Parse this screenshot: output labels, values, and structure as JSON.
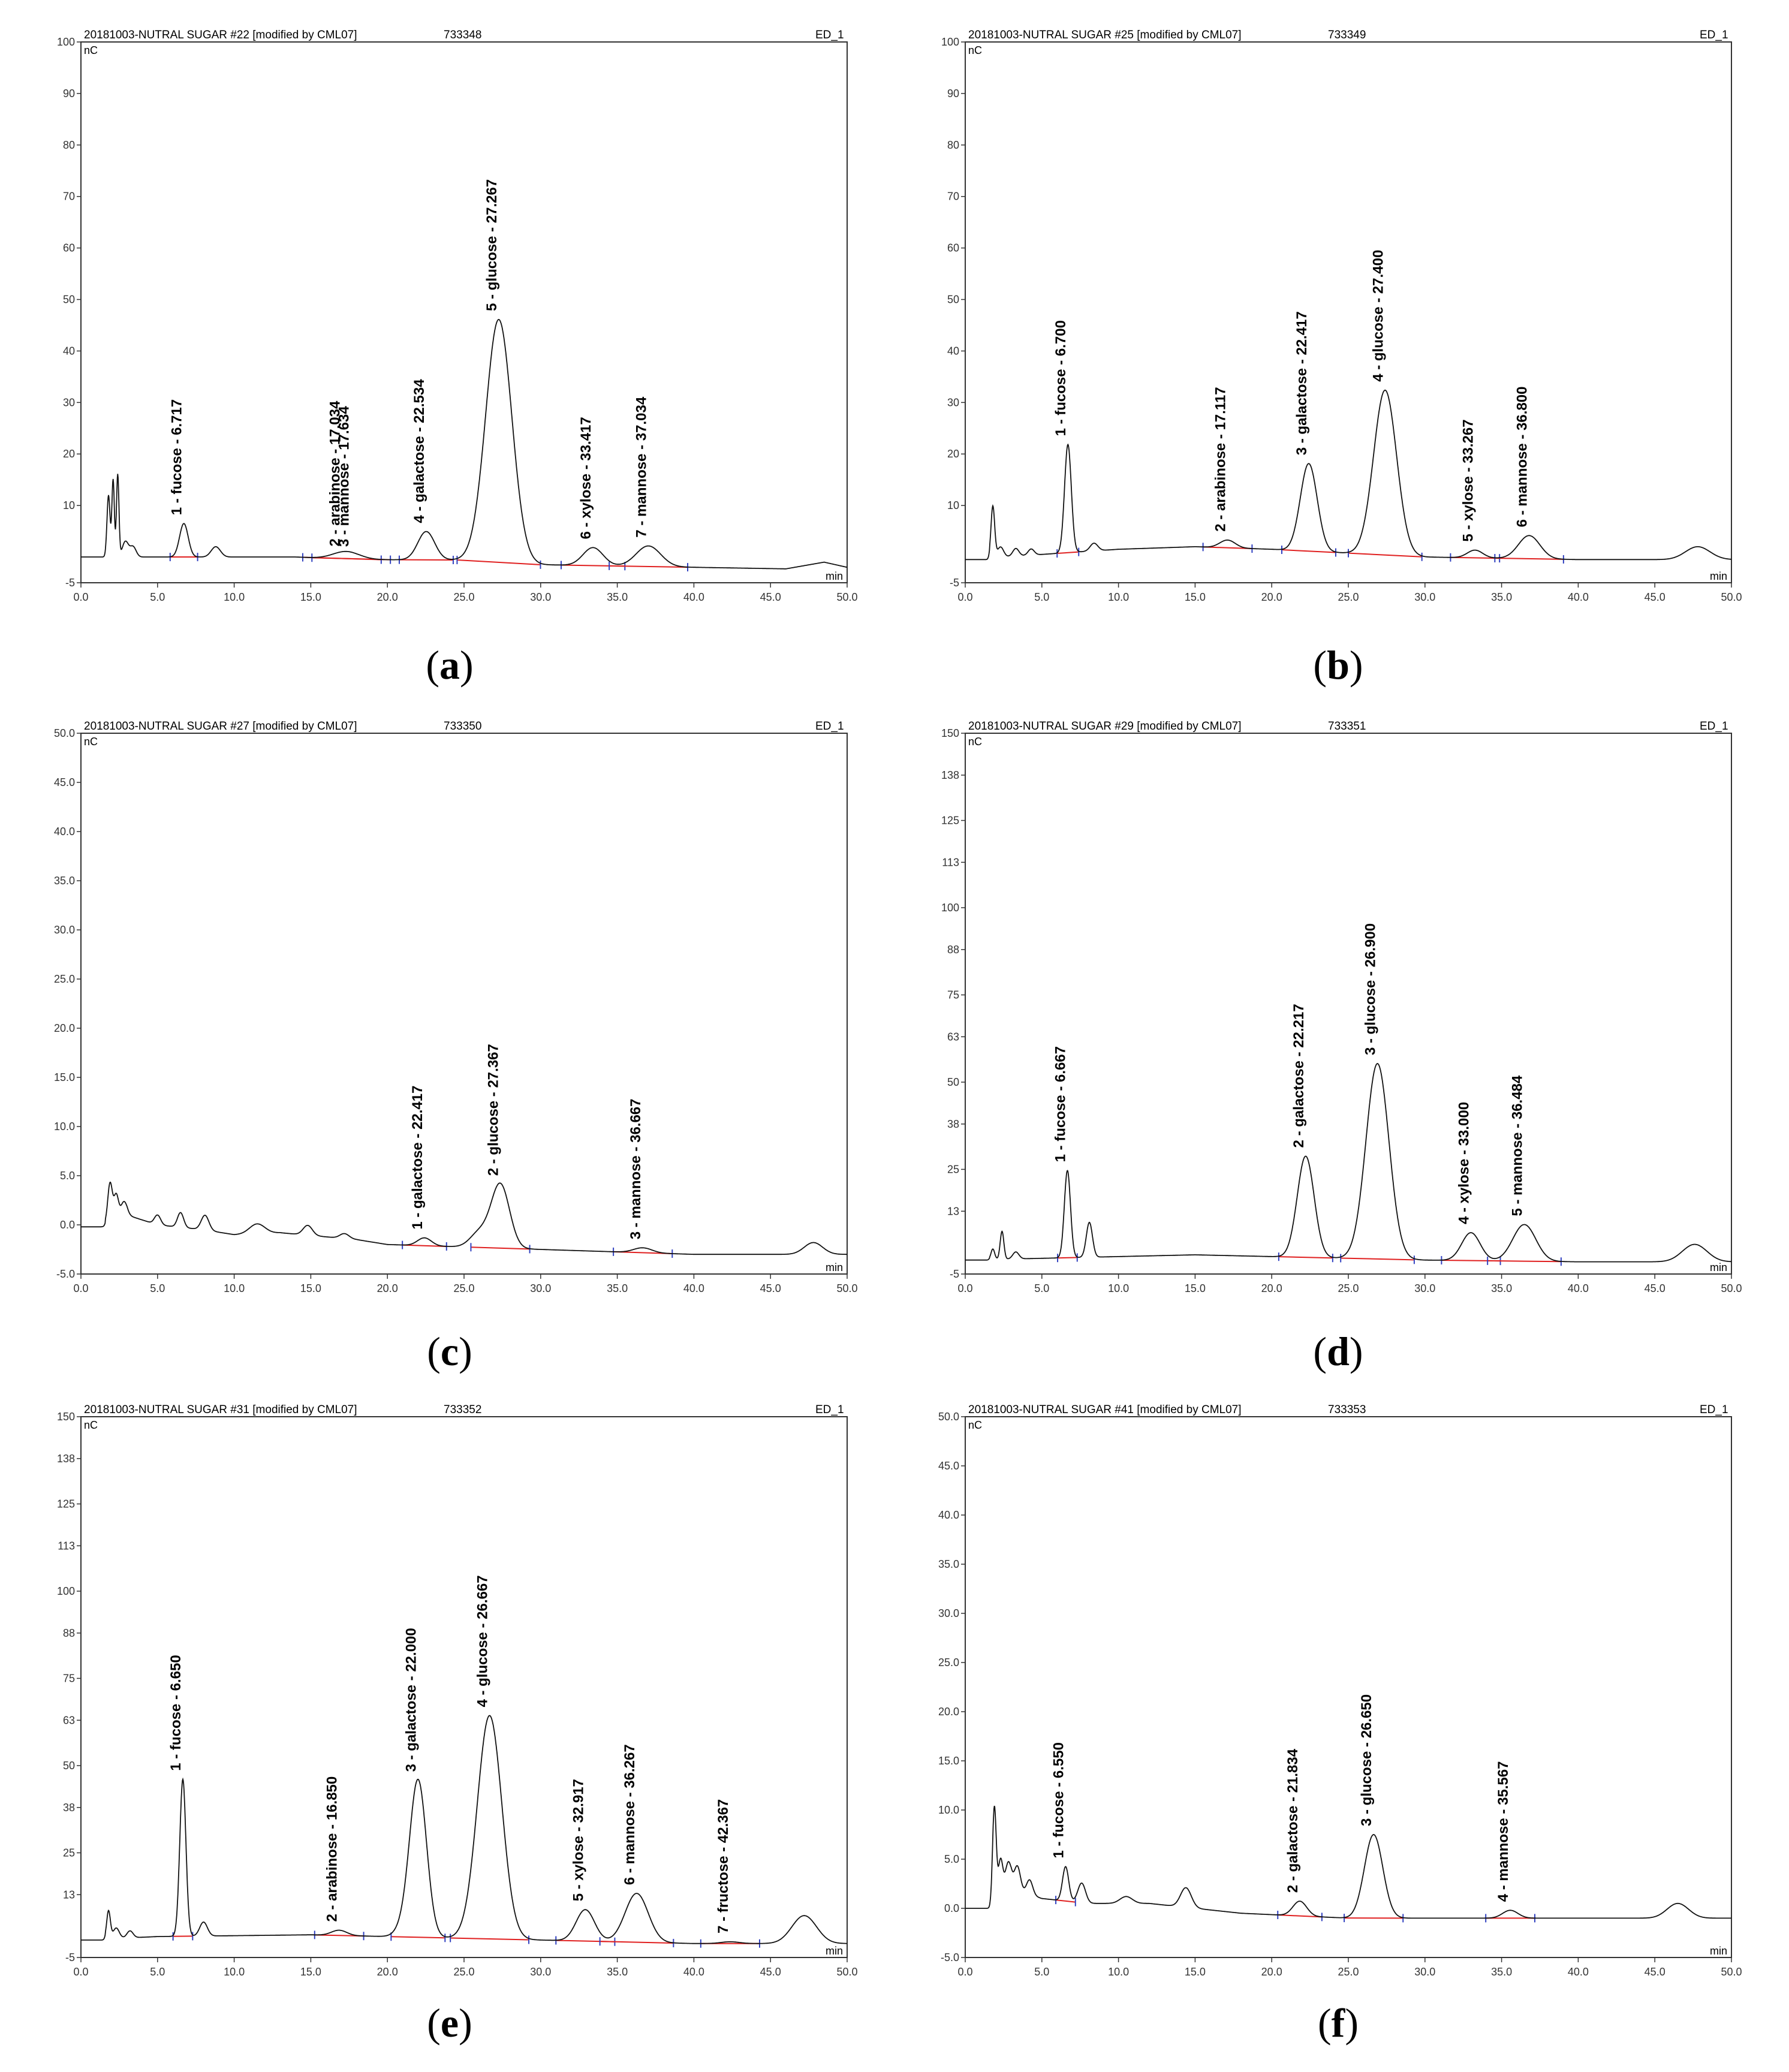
{
  "x_unit": "min",
  "y_unit": "nC",
  "chart_data": [
    {
      "type": "line",
      "caption_letter": "a",
      "header_title": "20181003-NUTRAL SUGAR #22 [modified by CML07]",
      "header_id": "733348",
      "header_detector": "ED_1",
      "xlim": [
        0,
        50
      ],
      "ylim": [
        -5,
        100
      ],
      "xticks": [
        "0.0",
        "5.0",
        "10.0",
        "15.0",
        "20.0",
        "25.0",
        "30.0",
        "35.0",
        "40.0",
        "45.0",
        "50.0"
      ],
      "yticks": [
        "-5",
        "10",
        "20",
        "30",
        "40",
        "50",
        "60",
        "70",
        "80",
        "90",
        "100"
      ],
      "ytick_values": [
        -5,
        10,
        20,
        30,
        40,
        50,
        60,
        70,
        80,
        90,
        100
      ],
      "baseline": [
        [
          0,
          0
        ],
        [
          14,
          0
        ],
        [
          18,
          -0.5
        ],
        [
          26,
          -0.6
        ],
        [
          30,
          -1.5
        ],
        [
          40,
          -2.0
        ],
        [
          46,
          -2.3
        ],
        [
          48.5,
          -1
        ],
        [
          50,
          -2
        ]
      ],
      "minor_peaks": [
        [
          1.8,
          12,
          0.1
        ],
        [
          2.1,
          15,
          0.08
        ],
        [
          2.4,
          16,
          0.08
        ],
        [
          2.9,
          3,
          0.2
        ],
        [
          3.4,
          2,
          0.2
        ],
        [
          8.8,
          2,
          0.3
        ]
      ],
      "peaks": [
        {
          "label": "1 - fucose - 6.717",
          "rt": 6.717,
          "height": 6.5,
          "width": 0.28
        },
        {
          "label": "2 - arabinose - 17.034",
          "rt": 17.034,
          "height": 0.8,
          "width": 0.8
        },
        {
          "label": "3 - mannose - 17.634",
          "rt": 17.634,
          "height": 0.8,
          "width": 0.8
        },
        {
          "label": "4 - galactose - 22.534",
          "rt": 22.534,
          "height": 5.5,
          "width": 0.55
        },
        {
          "label": "5 - glucose - 27.267",
          "rt": 27.267,
          "height": 47,
          "width": 0.85
        },
        {
          "label": "6 - xylose - 33.417",
          "rt": 33.417,
          "height": 3.5,
          "width": 0.65
        },
        {
          "label": "7 - mannose - 37.034",
          "rt": 37.034,
          "height": 4,
          "width": 0.8
        }
      ]
    },
    {
      "type": "line",
      "caption_letter": "b",
      "header_title": "20181003-NUTRAL SUGAR #25 [modified by CML07]",
      "header_id": "733349",
      "header_detector": "ED_1",
      "xlim": [
        0,
        50
      ],
      "ylim": [
        -5,
        100
      ],
      "xticks": [
        "0.0",
        "5.0",
        "10.0",
        "15.0",
        "20.0",
        "25.0",
        "30.0",
        "35.0",
        "40.0",
        "45.0",
        "50.0"
      ],
      "yticks": [
        "-5",
        "10",
        "20",
        "30",
        "40",
        "50",
        "60",
        "70",
        "80",
        "90",
        "100"
      ],
      "ytick_values": [
        -5,
        10,
        20,
        30,
        40,
        50,
        60,
        70,
        80,
        90,
        100
      ],
      "baseline": [
        [
          0,
          -0.5
        ],
        [
          5,
          0.5
        ],
        [
          10,
          1.5
        ],
        [
          15,
          2
        ],
        [
          20,
          1.5
        ],
        [
          30,
          0
        ],
        [
          40,
          -0.5
        ],
        [
          45,
          -0.5
        ],
        [
          50,
          -0.5
        ]
      ],
      "minor_peaks": [
        [
          1.8,
          10,
          0.12
        ],
        [
          2.3,
          2,
          0.2
        ],
        [
          3.3,
          1.5,
          0.2
        ],
        [
          4.3,
          1.2,
          0.2
        ],
        [
          8.4,
          1.5,
          0.25
        ],
        [
          47.8,
          2.5,
          0.8
        ]
      ],
      "peaks": [
        {
          "label": "1 - fucose - 6.700",
          "rt": 6.7,
          "height": 21,
          "width": 0.22
        },
        {
          "label": "2 - arabinose - 17.117",
          "rt": 17.117,
          "height": 1.5,
          "width": 0.5
        },
        {
          "label": "3 - galactose - 22.417",
          "rt": 22.417,
          "height": 17,
          "width": 0.55
        },
        {
          "label": "4 - glucose - 27.400",
          "rt": 27.4,
          "height": 32,
          "width": 0.75
        },
        {
          "label": "5 - xylose - 33.267",
          "rt": 33.267,
          "height": 1.5,
          "width": 0.5
        },
        {
          "label": "6 - mannose - 36.800",
          "rt": 36.8,
          "height": 4.5,
          "width": 0.7
        }
      ]
    },
    {
      "type": "line",
      "caption_letter": "c",
      "header_title": "20181003-NUTRAL SUGAR #27 [modified by CML07]",
      "header_id": "733350",
      "header_detector": "ED_1",
      "xlim": [
        0,
        50
      ],
      "ylim": [
        -5,
        50
      ],
      "xticks": [
        "0.0",
        "5.0",
        "10.0",
        "15.0",
        "20.0",
        "25.0",
        "30.0",
        "35.0",
        "40.0",
        "45.0",
        "50.0"
      ],
      "yticks": [
        "-5.0",
        "0.0",
        "5.0",
        "10.0",
        "15.0",
        "20.0",
        "25.0",
        "30.0",
        "35.0",
        "40.0",
        "45.0",
        "50.0"
      ],
      "ytick_values": [
        -5,
        0,
        5,
        10,
        15,
        20,
        25,
        30,
        35,
        40,
        45,
        50
      ],
      "baseline": [
        [
          0,
          -0.2
        ],
        [
          1.5,
          0
        ],
        [
          3,
          1
        ],
        [
          5,
          0
        ],
        [
          8,
          -0.5
        ],
        [
          10,
          -1
        ],
        [
          13,
          -0.8
        ],
        [
          18,
          -1.5
        ],
        [
          20,
          -2
        ],
        [
          30,
          -2.5
        ],
        [
          40,
          -3
        ],
        [
          46,
          -3
        ],
        [
          50,
          -3
        ]
      ],
      "minor_peaks": [
        [
          1.9,
          4,
          0.15
        ],
        [
          2.3,
          2.5,
          0.15
        ],
        [
          2.8,
          1.5,
          0.2
        ],
        [
          5.0,
          1,
          0.2
        ],
        [
          6.5,
          1.5,
          0.2
        ],
        [
          8.1,
          1.5,
          0.25
        ],
        [
          11.5,
          1,
          0.5
        ],
        [
          14.8,
          1,
          0.3
        ],
        [
          17.2,
          0.5,
          0.3
        ],
        [
          26.0,
          1.5,
          0.6
        ],
        [
          47.8,
          1.2,
          0.6
        ]
      ],
      "peaks": [
        {
          "label": "1 - galactose - 22.417",
          "rt": 22.417,
          "height": 0.8,
          "width": 0.45
        },
        {
          "label": "2 - glucose - 27.367",
          "rt": 27.367,
          "height": 6.5,
          "width": 0.6
        },
        {
          "label": "3 - mannose - 36.667",
          "rt": 36.667,
          "height": 0.5,
          "width": 0.6
        }
      ]
    },
    {
      "type": "line",
      "caption_letter": "d",
      "header_title": "20181003-NUTRAL SUGAR #29 [modified by CML07]",
      "header_id": "733351",
      "header_detector": "ED_1",
      "xlim": [
        0,
        50
      ],
      "ylim": [
        -5,
        150
      ],
      "xticks": [
        "0.0",
        "5.0",
        "10.0",
        "15.0",
        "20.0",
        "25.0",
        "30.0",
        "35.0",
        "40.0",
        "45.0",
        "50.0"
      ],
      "yticks": [
        "-5",
        "13",
        "25",
        "38",
        "50",
        "63",
        "75",
        "88",
        "100",
        "113",
        "125",
        "138",
        "150"
      ],
      "ytick_values": [
        -5,
        13,
        25,
        38,
        50,
        63,
        75,
        88,
        100,
        113,
        125,
        138,
        150
      ],
      "baseline": [
        [
          0,
          -1
        ],
        [
          5,
          -0.5
        ],
        [
          15,
          0.5
        ],
        [
          30,
          -1
        ],
        [
          40,
          -1.5
        ],
        [
          50,
          -1.5
        ]
      ],
      "minor_peaks": [
        [
          1.8,
          3,
          0.12
        ],
        [
          2.4,
          8,
          0.12
        ],
        [
          3.3,
          2,
          0.2
        ],
        [
          8.1,
          10,
          0.2
        ],
        [
          47.6,
          5,
          0.8
        ]
      ],
      "peaks": [
        {
          "label": "1 - fucose - 6.667",
          "rt": 6.667,
          "height": 25,
          "width": 0.2
        },
        {
          "label": "2 - galactose - 22.217",
          "rt": 22.217,
          "height": 29,
          "width": 0.55
        },
        {
          "label": "3 - glucose - 26.900",
          "rt": 26.9,
          "height": 56,
          "width": 0.75
        },
        {
          "label": "4 - xylose - 33.000",
          "rt": 33.0,
          "height": 8,
          "width": 0.6
        },
        {
          "label": "5 - mannose - 36.484",
          "rt": 36.484,
          "height": 10.5,
          "width": 0.75
        }
      ]
    },
    {
      "type": "line",
      "caption_letter": "e",
      "header_title": "20181003-NUTRAL SUGAR #31 [modified by CML07]",
      "header_id": "733352",
      "header_detector": "ED_1",
      "xlim": [
        0,
        50
      ],
      "ylim": [
        -5,
        150
      ],
      "xticks": [
        "0.0",
        "5.0",
        "10.0",
        "15.0",
        "20.0",
        "25.0",
        "30.0",
        "35.0",
        "40.0",
        "45.0",
        "50.0"
      ],
      "yticks": [
        "-5",
        "13",
        "25",
        "38",
        "50",
        "63",
        "75",
        "88",
        "100",
        "113",
        "125",
        "138",
        "150"
      ],
      "ytick_values": [
        -5,
        13,
        25,
        38,
        50,
        63,
        75,
        88,
        100,
        113,
        125,
        138,
        150
      ],
      "baseline": [
        [
          0,
          0
        ],
        [
          5,
          1
        ],
        [
          15,
          1.5
        ],
        [
          30,
          0
        ],
        [
          40,
          -1
        ],
        [
          50,
          -1
        ]
      ],
      "minor_peaks": [
        [
          1.8,
          8,
          0.12
        ],
        [
          2.3,
          3,
          0.2
        ],
        [
          3.2,
          2,
          0.2
        ],
        [
          8.0,
          4,
          0.25
        ],
        [
          21.0,
          2,
          0.5
        ],
        [
          47.2,
          8,
          0.8
        ]
      ],
      "peaks": [
        {
          "label": "1 - fucose - 6.650",
          "rt": 6.65,
          "height": 45,
          "width": 0.2
        },
        {
          "label": "2 - arabinose - 16.850",
          "rt": 16.85,
          "height": 1.5,
          "width": 0.5
        },
        {
          "label": "3 - galactose - 22.000",
          "rt": 22.0,
          "height": 45,
          "width": 0.55
        },
        {
          "label": "4 - glucose - 26.667",
          "rt": 26.667,
          "height": 64,
          "width": 0.8
        },
        {
          "label": "5 - xylose - 32.917",
          "rt": 32.917,
          "height": 9,
          "width": 0.6
        },
        {
          "label": "6 - mannose - 36.267",
          "rt": 36.267,
          "height": 14,
          "width": 0.75
        },
        {
          "label": "7 - fructose - 42.367",
          "rt": 42.367,
          "height": 0.5,
          "width": 0.6
        }
      ]
    },
    {
      "type": "line",
      "caption_letter": "f",
      "header_title": "20181003-NUTRAL SUGAR #41 [modified by CML07]",
      "header_id": "733353",
      "header_detector": "ED_1",
      "xlim": [
        0,
        50
      ],
      "ylim": [
        -5,
        50
      ],
      "xticks": [
        "0.0",
        "5.0",
        "10.0",
        "15.0",
        "20.0",
        "25.0",
        "30.0",
        "35.0",
        "40.0",
        "45.0",
        "50.0"
      ],
      "yticks": [
        "-5.0",
        "0.0",
        "5.0",
        "10.0",
        "15.0",
        "20.0",
        "25.0",
        "30.0",
        "35.0",
        "40.0",
        "45.0",
        "50.0"
      ],
      "ytick_values": [
        -5,
        0,
        5,
        10,
        15,
        20,
        25,
        30,
        35,
        40,
        45,
        50
      ],
      "baseline": [
        [
          0,
          0
        ],
        [
          1.7,
          0
        ],
        [
          3,
          2
        ],
        [
          5,
          1
        ],
        [
          8,
          0.5
        ],
        [
          12,
          0.5
        ],
        [
          18,
          -0.5
        ],
        [
          25,
          -1
        ],
        [
          35,
          -1
        ],
        [
          45,
          -1
        ],
        [
          50,
          -1
        ]
      ],
      "minor_peaks": [
        [
          1.9,
          10,
          0.12
        ],
        [
          2.3,
          4,
          0.15
        ],
        [
          2.8,
          3,
          0.2
        ],
        [
          3.4,
          2.5,
          0.2
        ],
        [
          4.2,
          1.5,
          0.2
        ],
        [
          7.6,
          2,
          0.25
        ],
        [
          10.5,
          0.7,
          0.4
        ],
        [
          14.4,
          2,
          0.35
        ],
        [
          46.5,
          1.5,
          0.7
        ]
      ],
      "peaks": [
        {
          "label": "1 - fucose - 6.550",
          "rt": 6.55,
          "height": 3.5,
          "width": 0.2
        },
        {
          "label": "2 - galactose - 21.834",
          "rt": 21.834,
          "height": 1.5,
          "width": 0.45
        },
        {
          "label": "3 - glucose - 26.650",
          "rt": 26.65,
          "height": 8.5,
          "width": 0.6
        },
        {
          "label": "4 - mannose - 35.567",
          "rt": 35.567,
          "height": 0.8,
          "width": 0.5
        }
      ]
    }
  ]
}
